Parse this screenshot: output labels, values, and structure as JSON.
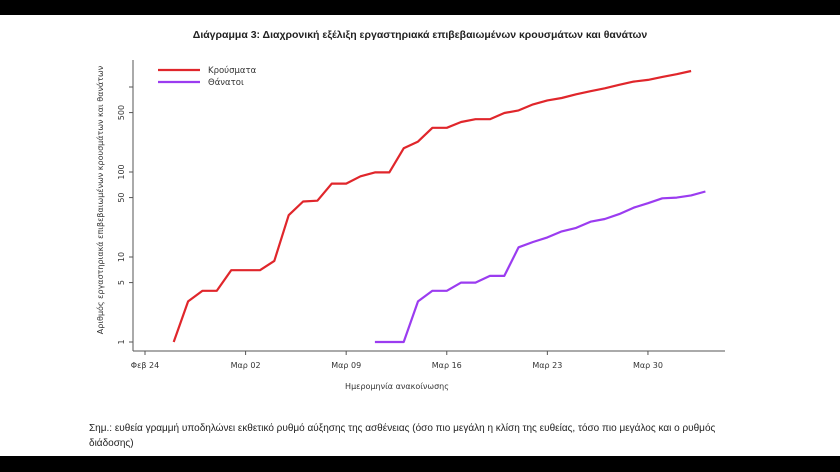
{
  "chart_data": {
    "type": "line",
    "title": "Διάγραμμα 3: Διαχρονική εξέλιξη εργαστηριακά επιβεβαιωμένων κρουσμάτων και θανάτων",
    "xlabel": "Ημερομηνία ανακοίνωσης",
    "ylabel": "Αριθμός εργαστηριακά επιβεβαιωμένων κρουσμάτων και θανάτων",
    "yscale": "log",
    "ylim": [
      1,
      1544
    ],
    "x_ticks": [
      {
        "day": 0,
        "label": "Φεβ 24"
      },
      {
        "day": 7,
        "label": "Μαρ 02"
      },
      {
        "day": 14,
        "label": "Μαρ 09"
      },
      {
        "day": 21,
        "label": "Μαρ 16"
      },
      {
        "day": 28,
        "label": "Μαρ 23"
      },
      {
        "day": 35,
        "label": "Μαρ 30"
      }
    ],
    "y_ticks": [
      {
        "value": 1,
        "label": "1"
      },
      {
        "value": 5,
        "label": "5"
      },
      {
        "value": 10,
        "label": "10"
      },
      {
        "value": 50,
        "label": "50"
      },
      {
        "value": 100,
        "label": "100"
      },
      {
        "value": 500,
        "label": "500"
      },
      {
        "value": 1000,
        "label": ""
      }
    ],
    "legend_position": "top-left",
    "series": [
      {
        "name": "Κρούσματα",
        "color": "#e0262b",
        "start_day": 2,
        "values": [
          1,
          3,
          4,
          4,
          7,
          7,
          7,
          9,
          31,
          45,
          46,
          73,
          73,
          89,
          99,
          99,
          190,
          228,
          331,
          331,
          387,
          418,
          418,
          495,
          530,
          624,
          695,
          743,
          821,
          892,
          966,
          1061,
          1156,
          1212,
          1314,
          1415,
          1544
        ]
      },
      {
        "name": "Θάνατοι",
        "color": "#9b3cf0",
        "start_day": 16,
        "values": [
          1,
          1,
          1,
          3,
          4,
          4,
          5,
          5,
          6,
          6,
          13,
          15,
          17,
          20,
          22,
          26,
          28,
          32,
          38,
          43,
          49,
          50,
          53,
          59
        ]
      }
    ]
  },
  "note": "Σημ.: ευθεία γραμμή υποδηλώνει εκθετικό ρυθμό αύξησης της ασθένειας (όσο πιο μεγάλη η κλίση της ευθείας, τόσο πιο μεγάλος και ο ρυθμός διάδοσης)"
}
